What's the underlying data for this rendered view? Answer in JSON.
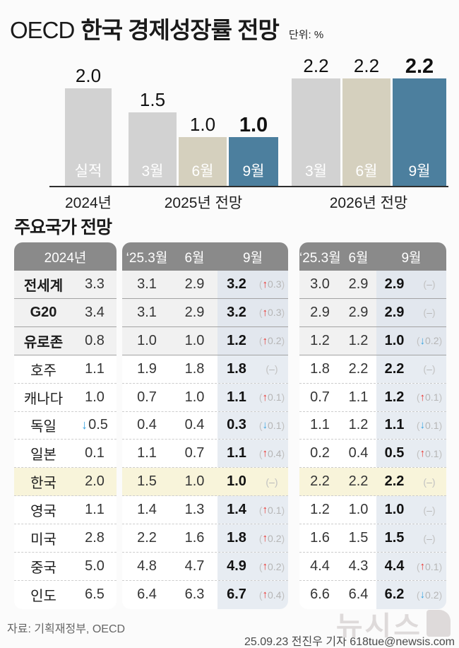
{
  "header": {
    "title_prefix": "OECD",
    "title_main": "한국 경제성장률 전망",
    "unit": "단위: %"
  },
  "icons": {
    "arrow_up": "↑",
    "arrow_down": "↓",
    "dash": "–",
    "open": "(",
    "close": ")"
  },
  "chart_data": {
    "type": "bar",
    "title": "OECD 한국 경제성장률 전망",
    "unit": "%",
    "ylim": [
      0,
      2.2
    ],
    "legend_position": "none",
    "grid": false,
    "groups": [
      {
        "label": "2024년",
        "bars": [
          {
            "name": "실적",
            "value": 2.0,
            "display": "2.0",
            "color": "#d2d2d2",
            "emphasis": false
          }
        ]
      },
      {
        "label": "2025년 전망",
        "bars": [
          {
            "name": "3월",
            "value": 1.5,
            "display": "1.5",
            "color": "#d2d2d2",
            "emphasis": false
          },
          {
            "name": "6월",
            "value": 1.0,
            "display": "1.0",
            "color": "#d5d0be",
            "emphasis": false
          },
          {
            "name": "9월",
            "value": 1.0,
            "display": "1.0",
            "color": "#4c7f9e",
            "emphasis": true
          }
        ]
      },
      {
        "label": "2026년 전망",
        "bars": [
          {
            "name": "3월",
            "value": 2.2,
            "display": "2.2",
            "color": "#d2d2d2",
            "emphasis": false
          },
          {
            "name": "6월",
            "value": 2.2,
            "display": "2.2",
            "color": "#d5d0be",
            "emphasis": false
          },
          {
            "name": "9월",
            "value": 2.2,
            "display": "2.2",
            "color": "#4c7f9e",
            "emphasis": true
          }
        ]
      }
    ]
  },
  "table": {
    "section_title": "주요국가 전망",
    "col_groups": [
      {
        "header": "2024년"
      },
      {
        "headers": [
          "‘25.3월",
          "6월",
          "9월"
        ]
      },
      {
        "headers": [
          "‘25.3월",
          "6월",
          "9월"
        ]
      }
    ],
    "rows": [
      {
        "country": "전세계",
        "style": "zone",
        "y2024": {
          "text": "3.3"
        },
        "f2025": {
          "m3": "3.1",
          "m6": "2.9",
          "m9": "3.2",
          "chg": {
            "dir": "up",
            "val": "0.3"
          }
        },
        "f2026": {
          "m3": "3.0",
          "m6": "2.9",
          "m9": "2.9",
          "chg": {
            "dir": "flat",
            "val": "–"
          }
        }
      },
      {
        "country": "G20",
        "style": "zone",
        "y2024": {
          "text": "3.4"
        },
        "f2025": {
          "m3": "3.1",
          "m6": "2.9",
          "m9": "3.2",
          "chg": {
            "dir": "up",
            "val": "0.3"
          }
        },
        "f2026": {
          "m3": "2.9",
          "m6": "2.9",
          "m9": "2.9",
          "chg": {
            "dir": "flat",
            "val": "–"
          }
        }
      },
      {
        "country": "유로존",
        "style": "zone",
        "y2024": {
          "text": "0.8"
        },
        "f2025": {
          "m3": "1.0",
          "m6": "1.0",
          "m9": "1.2",
          "chg": {
            "dir": "up",
            "val": "0.2"
          }
        },
        "f2026": {
          "m3": "1.2",
          "m6": "1.2",
          "m9": "1.0",
          "chg": {
            "dir": "down",
            "val": "0.2"
          }
        }
      },
      {
        "country": "호주",
        "style": "plain",
        "y2024": {
          "text": "1.1"
        },
        "f2025": {
          "m3": "1.9",
          "m6": "1.8",
          "m9": "1.8",
          "chg": {
            "dir": "flat",
            "val": "–"
          }
        },
        "f2026": {
          "m3": "1.8",
          "m6": "2.2",
          "m9": "2.2",
          "chg": {
            "dir": "flat",
            "val": "–"
          }
        }
      },
      {
        "country": "캐나다",
        "style": "plain",
        "y2024": {
          "text": "1.0"
        },
        "f2025": {
          "m3": "0.7",
          "m6": "1.0",
          "m9": "1.1",
          "chg": {
            "dir": "up",
            "val": "0.1"
          }
        },
        "f2026": {
          "m3": "0.7",
          "m6": "1.1",
          "m9": "1.2",
          "chg": {
            "dir": "up",
            "val": "0.1"
          }
        }
      },
      {
        "country": "독일",
        "style": "plain",
        "y2024": {
          "text": "0.5",
          "arrow": "down"
        },
        "f2025": {
          "m3": "0.4",
          "m6": "0.4",
          "m9": "0.3",
          "chg": {
            "dir": "down",
            "val": "0.1"
          }
        },
        "f2026": {
          "m3": "1.1",
          "m6": "1.2",
          "m9": "1.1",
          "chg": {
            "dir": "down",
            "val": "0.1"
          }
        }
      },
      {
        "country": "일본",
        "style": "plain",
        "y2024": {
          "text": "0.1"
        },
        "f2025": {
          "m3": "1.1",
          "m6": "0.7",
          "m9": "1.1",
          "chg": {
            "dir": "up",
            "val": "0.4"
          }
        },
        "f2026": {
          "m3": "0.2",
          "m6": "0.4",
          "m9": "0.5",
          "chg": {
            "dir": "up",
            "val": "0.1"
          }
        }
      },
      {
        "country": "한국",
        "style": "hl",
        "y2024": {
          "text": "2.0"
        },
        "f2025": {
          "m3": "1.5",
          "m6": "1.0",
          "m9": "1.0",
          "chg": {
            "dir": "flat",
            "val": "–"
          }
        },
        "f2026": {
          "m3": "2.2",
          "m6": "2.2",
          "m9": "2.2",
          "chg": {
            "dir": "flat",
            "val": "–"
          }
        }
      },
      {
        "country": "영국",
        "style": "plain",
        "y2024": {
          "text": "1.1"
        },
        "f2025": {
          "m3": "1.4",
          "m6": "1.3",
          "m9": "1.4",
          "chg": {
            "dir": "up",
            "val": "0.1"
          }
        },
        "f2026": {
          "m3": "1.2",
          "m6": "1.0",
          "m9": "1.0",
          "chg": {
            "dir": "flat",
            "val": "–"
          }
        }
      },
      {
        "country": "미국",
        "style": "plain",
        "y2024": {
          "text": "2.8"
        },
        "f2025": {
          "m3": "2.2",
          "m6": "1.6",
          "m9": "1.8",
          "chg": {
            "dir": "up",
            "val": "0.2"
          }
        },
        "f2026": {
          "m3": "1.6",
          "m6": "1.5",
          "m9": "1.5",
          "chg": {
            "dir": "flat",
            "val": "–"
          }
        }
      },
      {
        "country": "중국",
        "style": "plain",
        "y2024": {
          "text": "5.0"
        },
        "f2025": {
          "m3": "4.8",
          "m6": "4.7",
          "m9": "4.9",
          "chg": {
            "dir": "up",
            "val": "0.2"
          }
        },
        "f2026": {
          "m3": "4.4",
          "m6": "4.3",
          "m9": "4.4",
          "chg": {
            "dir": "up",
            "val": "0.1"
          }
        }
      },
      {
        "country": "인도",
        "style": "plain",
        "y2024": {
          "text": "6.5"
        },
        "f2025": {
          "m3": "6.4",
          "m6": "6.3",
          "m9": "6.7",
          "chg": {
            "dir": "up",
            "val": "0.4"
          }
        },
        "f2026": {
          "m3": "6.6",
          "m6": "6.4",
          "m9": "6.2",
          "chg": {
            "dir": "down",
            "val": "0.2"
          }
        }
      }
    ]
  },
  "footer": {
    "source": "자료: 기획재정부, OECD",
    "credit": "25.09.23 전진우 기자 618tue@newsis.com",
    "logo_text": "뉴시스"
  }
}
